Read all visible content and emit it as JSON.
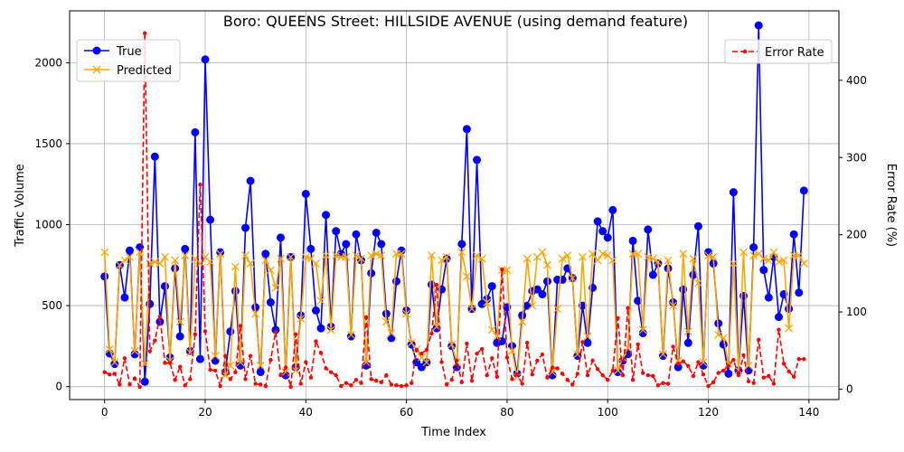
{
  "chart_data": {
    "type": "line",
    "title": "Boro: QUEENS Street: HILLSIDE AVENUE (using demand feature)",
    "xlabel": "Time Index",
    "ylabel": "Traffic Volume",
    "ylabel_right": "Error Rate (%)",
    "xlim": [
      -6.95,
      145.95
    ],
    "ylim": [
      -80,
      2320
    ],
    "ylim_right": [
      -13.5,
      490
    ],
    "xticks": [
      0,
      20,
      40,
      60,
      80,
      100,
      120,
      140
    ],
    "yticks": [
      0,
      500,
      1000,
      1500,
      2000
    ],
    "yticks_right": [
      0,
      100,
      200,
      300,
      400
    ],
    "grid": true,
    "legend_left": "upper-left",
    "legend_right": "upper-right",
    "series": [
      {
        "name": "True",
        "axis": "left",
        "color": "#0000ff",
        "marker": "circle",
        "values": [
          680,
          205,
          140,
          750,
          550,
          840,
          200,
          860,
          30,
          510,
          1420,
          400,
          620,
          180,
          730,
          310,
          850,
          220,
          1570,
          170,
          2020,
          1030,
          160,
          830,
          90,
          340,
          590,
          130,
          980,
          1270,
          490,
          90,
          820,
          520,
          350,
          920,
          70,
          800,
          120,
          440,
          1190,
          850,
          470,
          360,
          1060,
          370,
          960,
          820,
          880,
          310,
          940,
          780,
          130,
          700,
          950,
          880,
          450,
          300,
          650,
          840,
          470,
          260,
          150,
          120,
          150,
          630,
          360,
          600,
          790,
          250,
          120,
          880,
          1590,
          480,
          1400,
          510,
          540,
          620,
          270,
          280,
          490,
          250,
          80,
          440,
          500,
          590,
          600,
          570,
          650,
          70,
          660,
          660,
          730,
          670,
          190,
          500,
          270,
          610,
          1020,
          960,
          920,
          1090,
          90,
          160,
          200,
          900,
          530,
          330,
          970,
          690,
          760,
          190,
          730,
          520,
          120,
          600,
          270,
          690,
          990,
          130,
          830,
          760,
          390,
          260,
          80,
          1200,
          100,
          560,
          100,
          860,
          2230,
          720,
          550,
          800,
          430,
          570,
          480,
          940,
          580,
          1210
        ]
      },
      {
        "name": "Predicted",
        "axis": "left",
        "color": "#ffa500",
        "marker": "x",
        "values": [
          830,
          230,
          150,
          750,
          780,
          800,
          220,
          830,
          140,
          760,
          770,
          760,
          800,
          160,
          780,
          400,
          810,
          210,
          790,
          760,
          800,
          770,
          190,
          820,
          70,
          130,
          740,
          150,
          810,
          760,
          450,
          130,
          780,
          720,
          610,
          790,
          90,
          800,
          100,
          420,
          800,
          790,
          760,
          530,
          810,
          350,
          810,
          800,
          800,
          320,
          810,
          790,
          150,
          810,
          820,
          810,
          400,
          330,
          820,
          820,
          450,
          270,
          230,
          180,
          150,
          810,
          370,
          780,
          800,
          260,
          150,
          830,
          680,
          480,
          810,
          790,
          520,
          350,
          310,
          720,
          720,
          220,
          60,
          400,
          790,
          500,
          800,
          830,
          750,
          90,
          480,
          790,
          810,
          670,
          200,
          800,
          310,
          820,
          780,
          820,
          810,
          780,
          100,
          180,
          240,
          820,
          820,
          350,
          800,
          790,
          770,
          200,
          780,
          500,
          160,
          820,
          340,
          790,
          640,
          150,
          810,
          800,
          320,
          300,
          140,
          760,
          100,
          830,
          130,
          810,
          820,
          790,
          780,
          830,
          770,
          780,
          360,
          810,
          810,
          760
        ]
      },
      {
        "name": "Error Rate",
        "axis": "right",
        "color": "#ff0000",
        "marker": "dot",
        "linestyle": "dashed",
        "values": [
          22,
          19,
          20,
          6,
          40,
          6,
          14,
          3,
          461,
          49,
          63,
          94,
          34,
          34,
          12,
          29,
          5,
          13,
          71,
          265,
          75,
          25,
          24,
          4,
          43,
          13,
          22,
          82,
          13,
          43,
          7,
          6,
          4,
          38,
          74,
          18,
          28,
          3,
          71,
          7,
          35,
          15,
          62,
          47,
          27,
          22,
          18,
          4,
          8,
          5,
          12,
          8,
          93,
          13,
          11,
          9,
          18,
          6,
          5,
          4,
          5,
          8,
          51,
          46,
          51,
          72,
          135,
          35,
          6,
          12,
          37,
          9,
          59,
          11,
          46,
          52,
          18,
          40,
          16,
          155,
          41,
          13,
          19,
          7,
          60,
          19,
          37,
          45,
          15,
          28,
          27,
          20,
          12,
          6,
          20,
          61,
          18,
          37,
          26,
          18,
          12,
          24,
          92,
          18,
          105,
          12,
          58,
          21,
          18,
          17,
          5,
          8,
          7,
          55,
          33,
          36,
          30,
          17,
          35,
          19,
          4,
          9,
          21,
          24,
          30,
          38,
          18,
          44,
          10,
          8,
          64,
          15,
          17,
          7,
          77,
          33,
          23,
          16,
          39,
          39
        ]
      }
    ]
  }
}
